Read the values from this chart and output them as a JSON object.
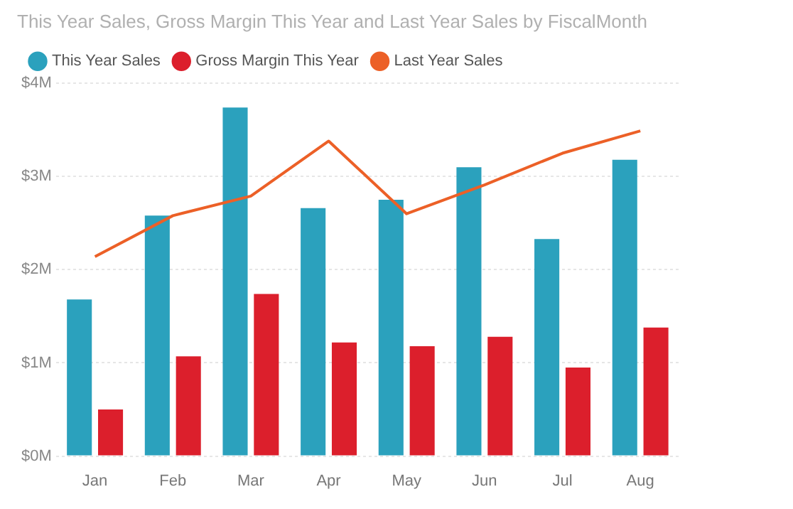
{
  "chart_data": {
    "type": "bar",
    "title": "This Year Sales, Gross Margin This Year and Last Year Sales by FiscalMonth",
    "categories": [
      "Jan",
      "Feb",
      "Mar",
      "Apr",
      "May",
      "Jun",
      "Jul",
      "Aug"
    ],
    "series": [
      {
        "name": "This Year Sales",
        "color": "#2ba1bd",
        "values": [
          1.68,
          2.58,
          3.74,
          2.66,
          2.75,
          3.1,
          2.33,
          3.18
        ]
      },
      {
        "name": "Gross Margin This Year",
        "color": "#dc1f2c",
        "values": [
          0.5,
          1.07,
          1.74,
          1.22,
          1.18,
          1.28,
          0.95,
          1.38
        ]
      },
      {
        "name": "Last Year Sales",
        "type": "line",
        "color": "#ec6027",
        "values": [
          2.14,
          2.58,
          2.79,
          3.38,
          2.6,
          2.91,
          3.25,
          3.49
        ]
      }
    ],
    "ylim": [
      0,
      4
    ],
    "yticks": [
      {
        "value": 0,
        "label": "$0M"
      },
      {
        "value": 1,
        "label": "$1M"
      },
      {
        "value": 2,
        "label": "$2M"
      },
      {
        "value": 3,
        "label": "$3M"
      },
      {
        "value": 4,
        "label": "$4M"
      }
    ],
    "grid": "y",
    "legend": "top left",
    "marker": "none"
  }
}
